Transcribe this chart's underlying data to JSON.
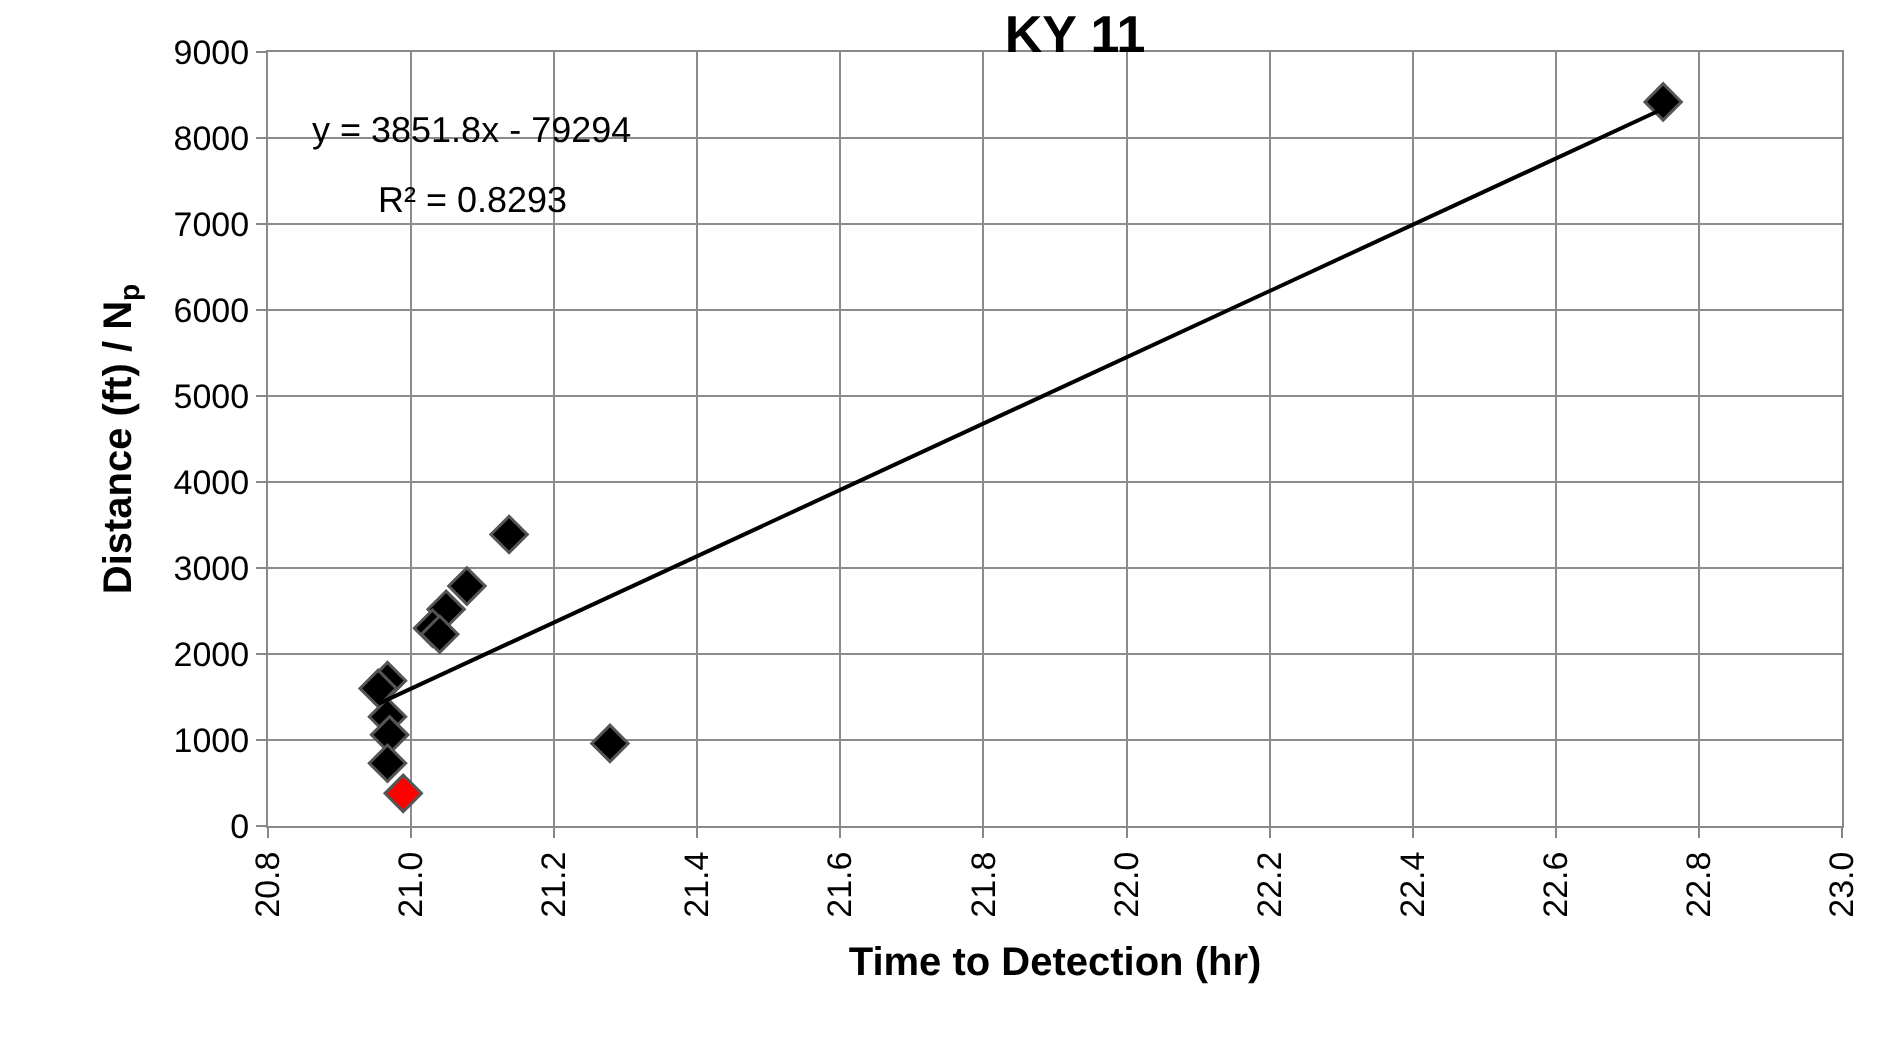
{
  "chart_data": {
    "type": "scatter",
    "title": "KY 11",
    "xlabel": "Time to Detection (hr)",
    "ylabel": "Distance (ft) / N$_{p}$",
    "series": [
      {
        "color": "#000000",
        "x": [
          22.75,
          21.137,
          21.078,
          21.049,
          21.03,
          21.04,
          20.967,
          20.954,
          20.967,
          20.97,
          20.967,
          21.278
        ],
        "values": [
          8420,
          3390,
          2790,
          2520,
          2300,
          2230,
          1690,
          1600,
          1270,
          1060,
          730,
          960
        ]
      },
      {
        "color": "#ff0000",
        "x": [
          20.989
        ],
        "values": [
          380
        ]
      },
      {
        "type": "line",
        "color": "#000000",
        "marker": "none",
        "x": [
          20.954,
          22.75
        ],
        "values": [
          1420,
          8340
        ]
      }
    ],
    "annotations": [
      "y = 3851.8x - 79294",
      "R² = 0.8293"
    ],
    "marker": "diamond",
    "grid": true,
    "xlim": [
      20.8,
      23.0
    ],
    "xticks": [
      20.8,
      {
        "value": 21.0,
        "label": "21.0"
      },
      21.2,
      21.4,
      21.6,
      21.8,
      {
        "value": 22.0,
        "label": "22.0"
      },
      22.2,
      22.4,
      22.6,
      22.8,
      {
        "value": 23.0,
        "label": "23.0"
      }
    ],
    "ylim": [
      0,
      9000
    ],
    "yticks": [
      0,
      1000,
      2000,
      3000,
      4000,
      5000,
      6000,
      7000,
      8000,
      9000
    ]
  }
}
